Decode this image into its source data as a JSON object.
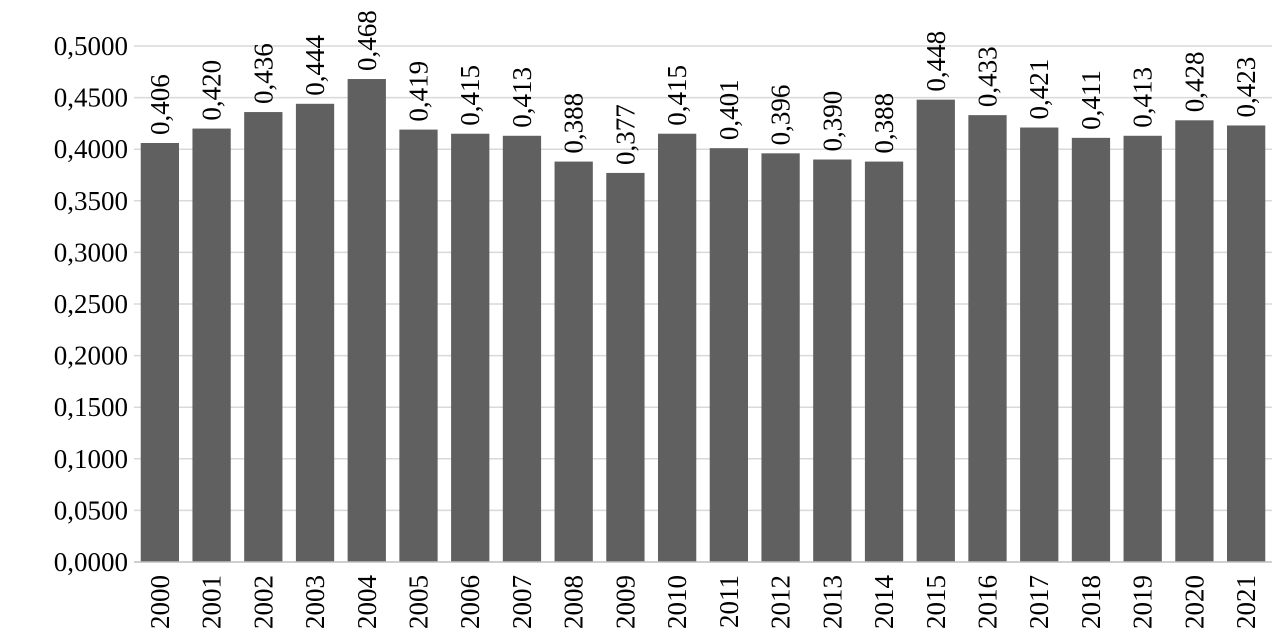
{
  "chart_data": {
    "type": "bar",
    "title": "",
    "xlabel": "",
    "ylabel": "",
    "categories": [
      "2000",
      "2001",
      "2002",
      "2003",
      "2004",
      "2005",
      "2006",
      "2007",
      "2008",
      "2009",
      "2010",
      "2011",
      "2012",
      "2013",
      "2014",
      "2015",
      "2016",
      "2017",
      "2018",
      "2019",
      "2020",
      "2021"
    ],
    "values": [
      0.406,
      0.42,
      0.436,
      0.444,
      0.468,
      0.419,
      0.415,
      0.413,
      0.388,
      0.377,
      0.415,
      0.401,
      0.396,
      0.39,
      0.388,
      0.448,
      0.433,
      0.421,
      0.411,
      0.413,
      0.428,
      0.423
    ],
    "data_labels": [
      "0,406",
      "0,420",
      "0,436",
      "0,444",
      "0,468",
      "0,419",
      "0,415",
      "0,413",
      "0,388",
      "0,377",
      "0,415",
      "0,401",
      "0,396",
      "0,390",
      "0,388",
      "0,448",
      "0,433",
      "0,421",
      "0,411",
      "0,413",
      "0,428",
      "0,423"
    ],
    "ylim": [
      0,
      0.5
    ],
    "y_ticks": [
      0,
      0.05,
      0.1,
      0.15,
      0.2,
      0.25,
      0.3,
      0.35,
      0.4,
      0.45,
      0.5
    ],
    "y_tick_labels": [
      "0,0000",
      "0,0500",
      "0,1000",
      "0,1500",
      "0,2000",
      "0,2500",
      "0,3000",
      "0,3500",
      "0,4000",
      "0,4500",
      "0,5000"
    ],
    "grid": true,
    "legend": "none",
    "bar_color": "#606060"
  }
}
